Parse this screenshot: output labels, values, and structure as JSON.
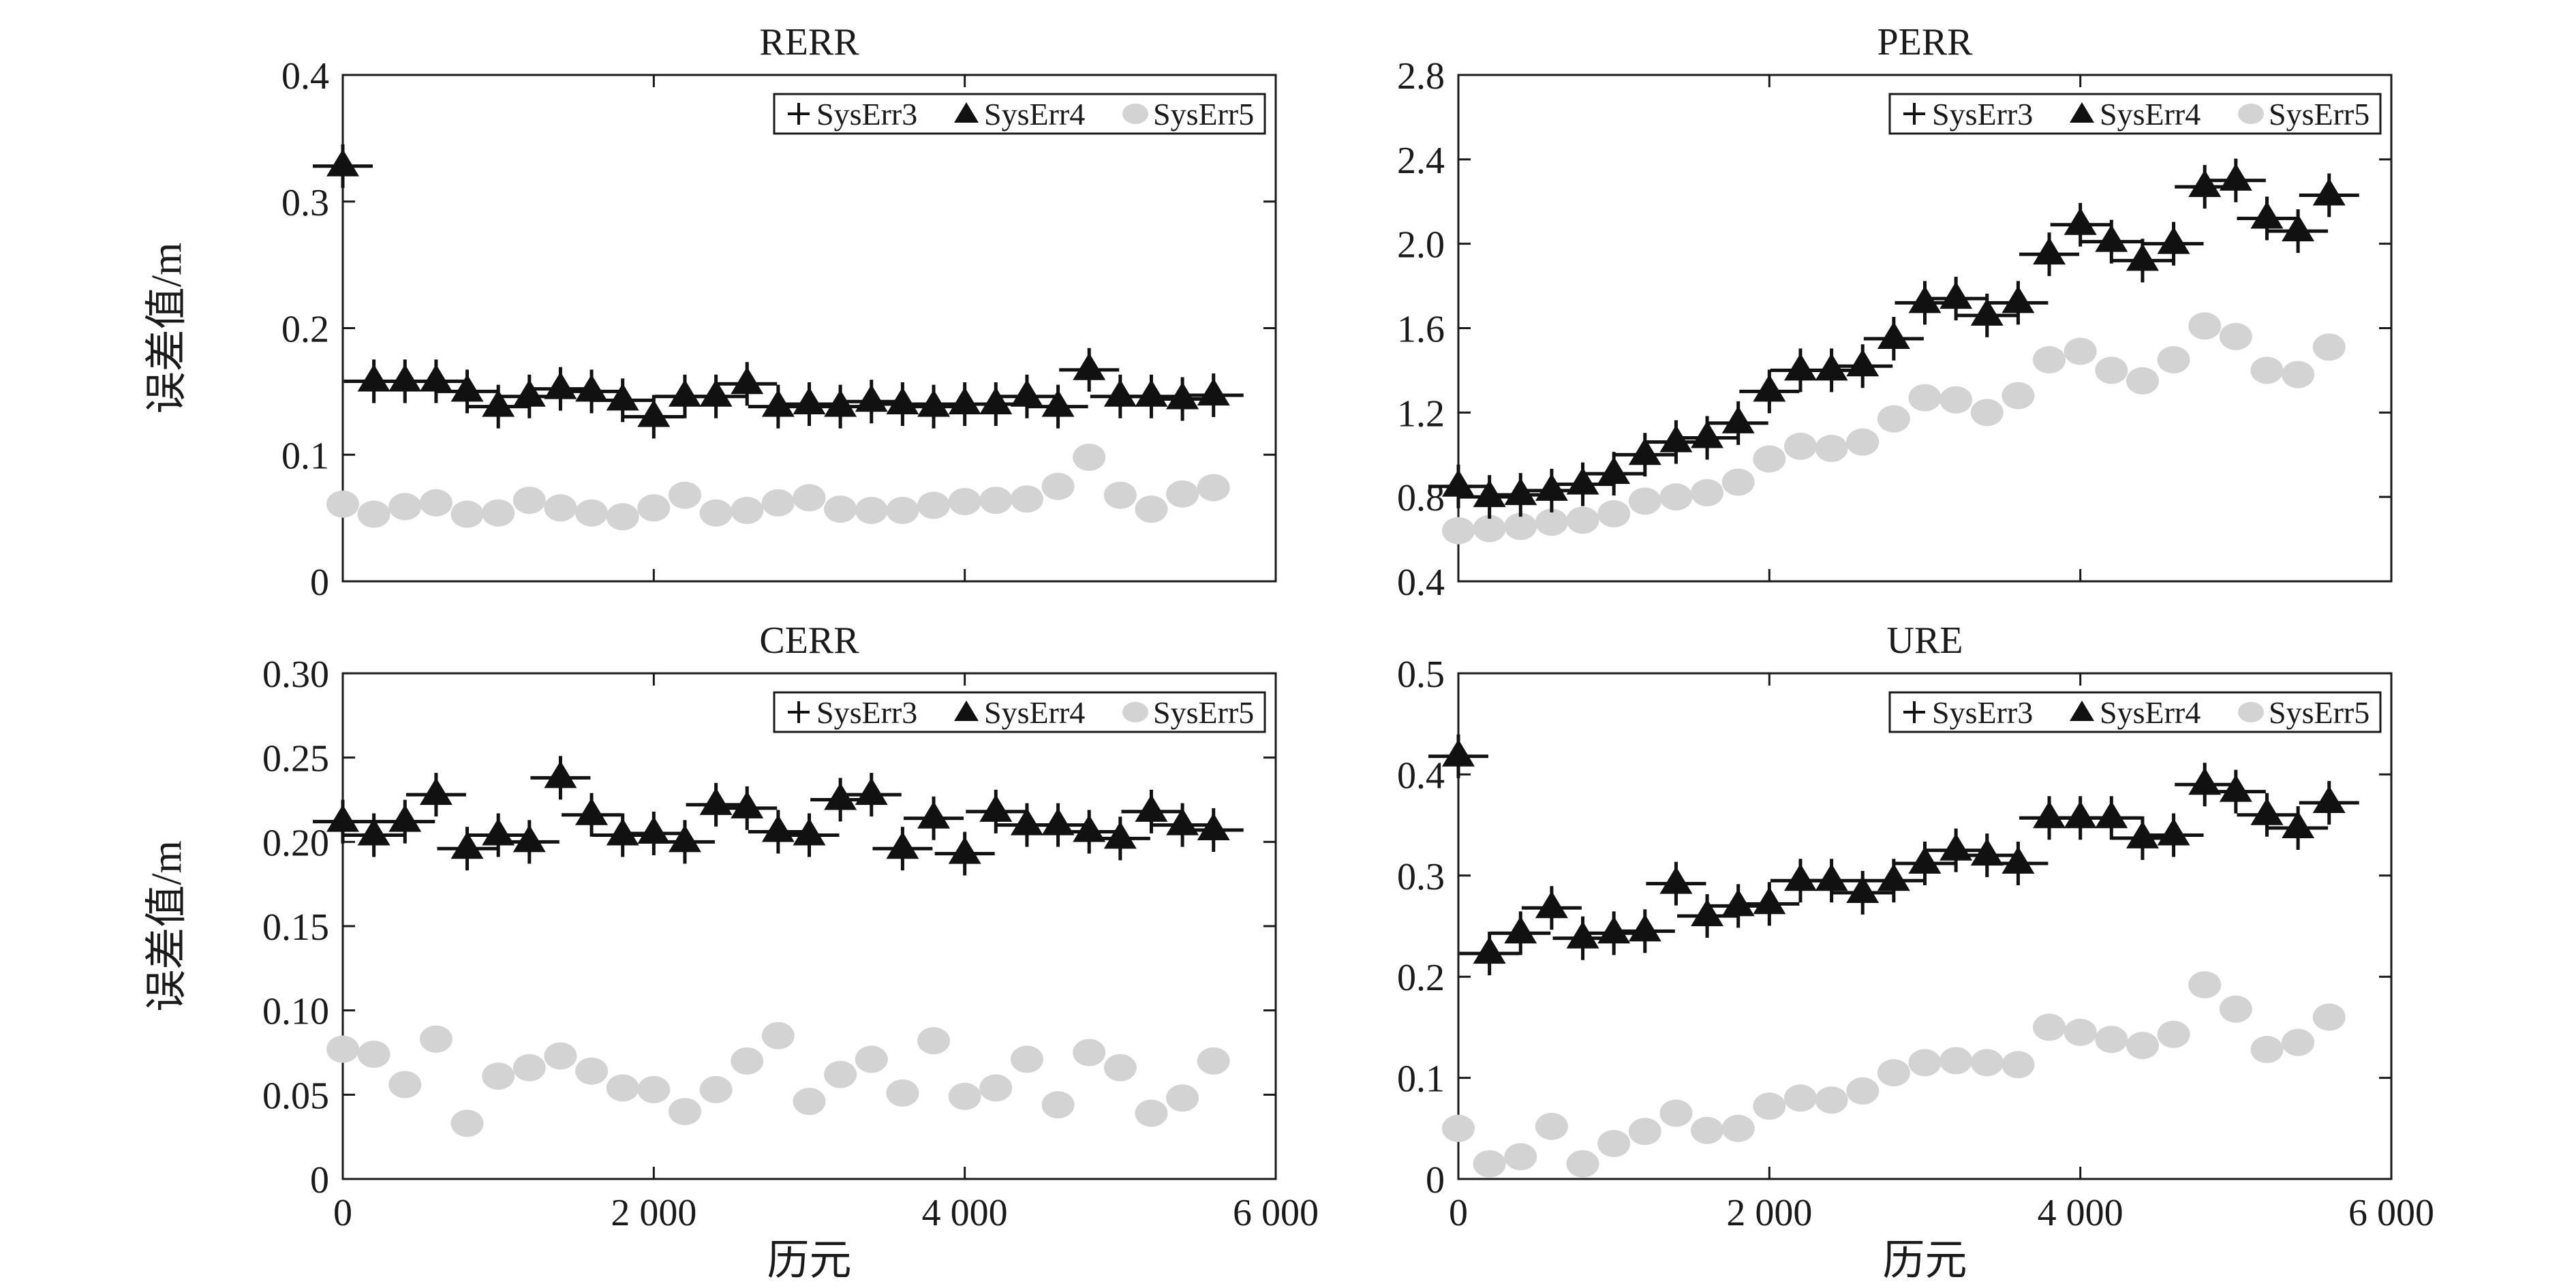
{
  "chart_data": [
    {
      "type": "scatter",
      "title": "RERR",
      "xlabel": "",
      "ylabel": "误差值/m",
      "xlim": [
        0,
        6000
      ],
      "ylim": [
        0,
        0.4
      ],
      "yticks": [
        0,
        0.1,
        0.2,
        0.3,
        0.4
      ],
      "ytick_labels": [
        "0",
        "0.1",
        "0.2",
        "0.3",
        "0.4"
      ],
      "xticks": [
        0,
        2000,
        4000,
        6000
      ],
      "xtick_labels": [],
      "x": [
        0,
        200,
        400,
        600,
        800,
        1000,
        1200,
        1400,
        1600,
        1800,
        2000,
        2200,
        2400,
        2600,
        2800,
        3000,
        3200,
        3400,
        3600,
        3800,
        4000,
        4200,
        4400,
        4600,
        4800,
        5000,
        5200,
        5400,
        5600
      ],
      "series": [
        {
          "name": "SysErr3",
          "marker": "plus",
          "values": [
            0.328,
            0.158,
            0.158,
            0.158,
            0.15,
            0.138,
            0.146,
            0.152,
            0.15,
            0.143,
            0.13,
            0.146,
            0.146,
            0.156,
            0.138,
            0.14,
            0.138,
            0.142,
            0.14,
            0.138,
            0.14,
            0.14,
            0.146,
            0.138,
            0.167,
            0.146,
            0.146,
            0.144,
            0.147
          ]
        },
        {
          "name": "SysErr4",
          "marker": "triangle",
          "values": [
            0.328,
            0.158,
            0.158,
            0.158,
            0.15,
            0.138,
            0.146,
            0.152,
            0.15,
            0.143,
            0.13,
            0.146,
            0.146,
            0.156,
            0.138,
            0.14,
            0.138,
            0.142,
            0.14,
            0.138,
            0.14,
            0.14,
            0.146,
            0.138,
            0.167,
            0.146,
            0.146,
            0.144,
            0.147
          ]
        },
        {
          "name": "SysErr5",
          "marker": "circle",
          "values": [
            0.061,
            0.053,
            0.059,
            0.062,
            0.053,
            0.054,
            0.064,
            0.058,
            0.054,
            0.051,
            0.058,
            0.068,
            0.054,
            0.056,
            0.062,
            0.066,
            0.057,
            0.056,
            0.056,
            0.06,
            0.063,
            0.064,
            0.065,
            0.075,
            0.098,
            0.068,
            0.057,
            0.069,
            0.074
          ]
        }
      ],
      "legend": [
        "SysErr3",
        "SysErr4",
        "SysErr5"
      ],
      "legend_position": "top-right"
    },
    {
      "type": "scatter",
      "title": "PERR",
      "xlabel": "",
      "ylabel": "",
      "xlim": [
        0,
        6000
      ],
      "ylim": [
        0.4,
        2.8
      ],
      "yticks": [
        0.4,
        0.8,
        1.2,
        1.6,
        2.0,
        2.4,
        2.8
      ],
      "ytick_labels": [
        "0.4",
        "0.8",
        "1.2",
        "1.6",
        "2.0",
        "2.4",
        "2.8"
      ],
      "xticks": [
        0,
        2000,
        4000,
        6000
      ],
      "xtick_labels": [],
      "x": [
        0,
        200,
        400,
        600,
        800,
        1000,
        1200,
        1400,
        1600,
        1800,
        2000,
        2200,
        2400,
        2600,
        2800,
        3000,
        3200,
        3400,
        3600,
        3800,
        4000,
        4200,
        4400,
        4600,
        4800,
        5000,
        5200,
        5400,
        5600
      ],
      "series": [
        {
          "name": "SysErr3",
          "marker": "plus",
          "values": [
            0.85,
            0.8,
            0.81,
            0.83,
            0.86,
            0.91,
            1.0,
            1.06,
            1.08,
            1.15,
            1.3,
            1.4,
            1.4,
            1.42,
            1.55,
            1.72,
            1.74,
            1.66,
            1.72,
            1.95,
            2.09,
            2.01,
            1.92,
            2.0,
            2.27,
            2.3,
            2.12,
            2.06,
            2.23
          ]
        },
        {
          "name": "SysErr4",
          "marker": "triangle",
          "values": [
            0.85,
            0.8,
            0.81,
            0.83,
            0.86,
            0.91,
            1.0,
            1.06,
            1.08,
            1.15,
            1.3,
            1.4,
            1.4,
            1.42,
            1.55,
            1.72,
            1.74,
            1.66,
            1.72,
            1.95,
            2.09,
            2.01,
            1.92,
            2.0,
            2.27,
            2.3,
            2.12,
            2.06,
            2.23
          ]
        },
        {
          "name": "SysErr5",
          "marker": "circle",
          "values": [
            0.64,
            0.65,
            0.66,
            0.68,
            0.69,
            0.72,
            0.78,
            0.8,
            0.82,
            0.87,
            0.98,
            1.04,
            1.03,
            1.06,
            1.17,
            1.27,
            1.26,
            1.2,
            1.28,
            1.45,
            1.49,
            1.4,
            1.35,
            1.45,
            1.61,
            1.56,
            1.4,
            1.38,
            1.51
          ]
        }
      ],
      "legend": [
        "SysErr3",
        "SysErr4",
        "SysErr5"
      ],
      "legend_position": "top-right"
    },
    {
      "type": "scatter",
      "title": "CERR",
      "xlabel": "历元",
      "ylabel": "误差值/m",
      "xlim": [
        0,
        6000
      ],
      "ylim": [
        0,
        0.3
      ],
      "yticks": [
        0,
        0.05,
        0.1,
        0.15,
        0.2,
        0.25,
        0.3
      ],
      "ytick_labels": [
        "0",
        "0.05",
        "0.10",
        "0.15",
        "0.20",
        "0.25",
        "0.30"
      ],
      "xticks": [
        0,
        2000,
        4000,
        6000
      ],
      "xtick_labels": [
        "0",
        "2 000",
        "4 000",
        "6 000"
      ],
      "x": [
        0,
        200,
        400,
        600,
        800,
        1000,
        1200,
        1400,
        1600,
        1800,
        2000,
        2200,
        2400,
        2600,
        2800,
        3000,
        3200,
        3400,
        3600,
        3800,
        4000,
        4200,
        4400,
        4600,
        4800,
        5000,
        5200,
        5400,
        5600
      ],
      "series": [
        {
          "name": "SysErr3",
          "marker": "plus",
          "values": [
            0.212,
            0.204,
            0.212,
            0.228,
            0.196,
            0.204,
            0.2,
            0.238,
            0.216,
            0.204,
            0.205,
            0.2,
            0.222,
            0.22,
            0.206,
            0.204,
            0.225,
            0.228,
            0.196,
            0.214,
            0.193,
            0.218,
            0.21,
            0.21,
            0.206,
            0.202,
            0.218,
            0.21,
            0.207
          ]
        },
        {
          "name": "SysErr4",
          "marker": "triangle",
          "values": [
            0.212,
            0.204,
            0.212,
            0.228,
            0.196,
            0.204,
            0.2,
            0.238,
            0.216,
            0.204,
            0.205,
            0.2,
            0.222,
            0.22,
            0.206,
            0.204,
            0.225,
            0.228,
            0.196,
            0.214,
            0.193,
            0.218,
            0.21,
            0.21,
            0.206,
            0.202,
            0.218,
            0.21,
            0.207
          ]
        },
        {
          "name": "SysErr5",
          "marker": "circle",
          "values": [
            0.077,
            0.074,
            0.056,
            0.083,
            0.033,
            0.061,
            0.066,
            0.073,
            0.064,
            0.054,
            0.053,
            0.04,
            0.053,
            0.07,
            0.085,
            0.046,
            0.062,
            0.071,
            0.051,
            0.082,
            0.049,
            0.054,
            0.071,
            0.044,
            0.075,
            0.066,
            0.039,
            0.048,
            0.07
          ]
        }
      ],
      "legend": [
        "SysErr3",
        "SysErr4",
        "SysErr5"
      ],
      "legend_position": "top-right"
    },
    {
      "type": "scatter",
      "title": "URE",
      "xlabel": "历元",
      "ylabel": "",
      "xlim": [
        0,
        6000
      ],
      "ylim": [
        0,
        0.5
      ],
      "yticks": [
        0,
        0.1,
        0.2,
        0.3,
        0.4,
        0.5
      ],
      "ytick_labels": [
        "0",
        "0.1",
        "0.2",
        "0.3",
        "0.4",
        "0.5"
      ],
      "xticks": [
        0,
        2000,
        4000,
        6000
      ],
      "xtick_labels": [
        "0",
        "2 000",
        "4 000",
        "6 000"
      ],
      "x": [
        0,
        200,
        400,
        600,
        800,
        1000,
        1200,
        1400,
        1600,
        1800,
        2000,
        2200,
        2400,
        2600,
        2800,
        3000,
        3200,
        3400,
        3600,
        3800,
        4000,
        4200,
        4400,
        4600,
        4800,
        5000,
        5200,
        5400,
        5600
      ],
      "series": [
        {
          "name": "SysErr3",
          "marker": "plus",
          "values": [
            0.418,
            0.223,
            0.243,
            0.268,
            0.238,
            0.243,
            0.245,
            0.292,
            0.26,
            0.27,
            0.272,
            0.295,
            0.295,
            0.283,
            0.295,
            0.312,
            0.325,
            0.32,
            0.312,
            0.357,
            0.357,
            0.357,
            0.337,
            0.34,
            0.39,
            0.383,
            0.36,
            0.347,
            0.372
          ]
        },
        {
          "name": "SysErr4",
          "marker": "triangle",
          "values": [
            0.418,
            0.223,
            0.243,
            0.268,
            0.238,
            0.243,
            0.245,
            0.292,
            0.26,
            0.27,
            0.272,
            0.295,
            0.295,
            0.283,
            0.295,
            0.312,
            0.325,
            0.32,
            0.312,
            0.357,
            0.357,
            0.357,
            0.337,
            0.34,
            0.39,
            0.383,
            0.36,
            0.347,
            0.372
          ]
        },
        {
          "name": "SysErr5",
          "marker": "circle",
          "values": [
            0.05,
            0.015,
            0.022,
            0.052,
            0.015,
            0.035,
            0.047,
            0.065,
            0.048,
            0.05,
            0.072,
            0.08,
            0.078,
            0.087,
            0.105,
            0.115,
            0.117,
            0.115,
            0.113,
            0.15,
            0.145,
            0.138,
            0.132,
            0.143,
            0.192,
            0.168,
            0.128,
            0.135,
            0.16
          ]
        }
      ],
      "legend": [
        "SysErr3",
        "SysErr4",
        "SysErr5"
      ],
      "legend_position": "top-right"
    }
  ]
}
